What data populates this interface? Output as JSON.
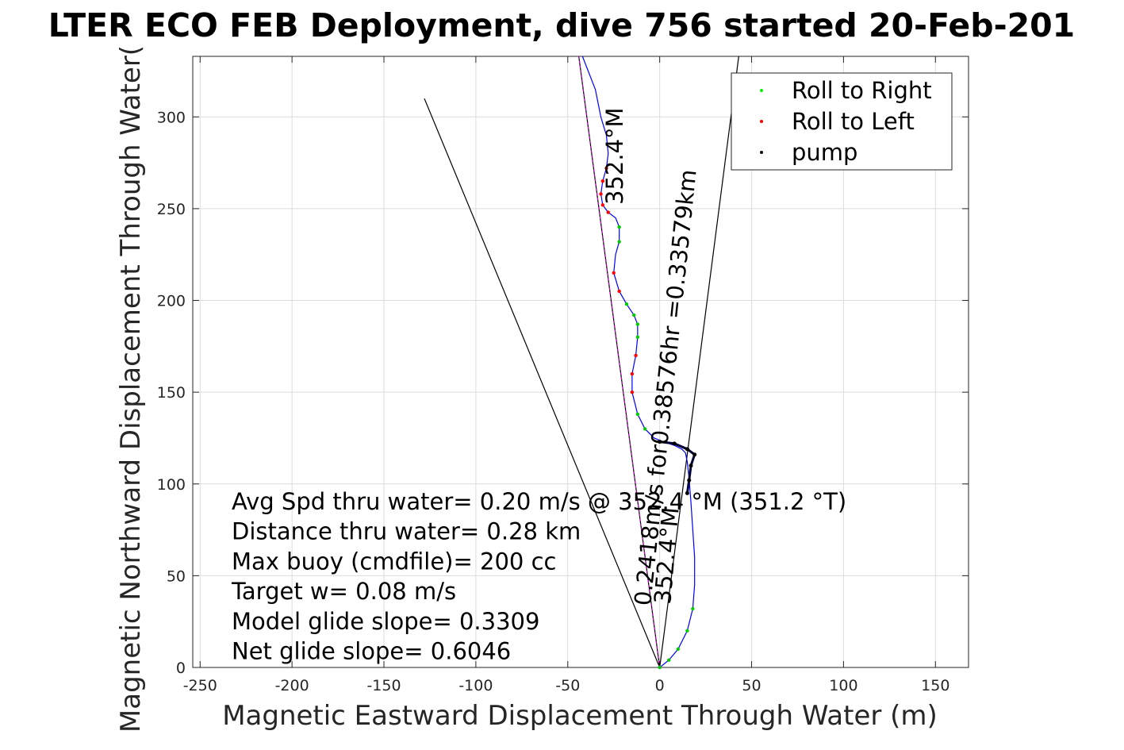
{
  "chart_data": {
    "type": "line",
    "title": "LTER ECO FEB Deployment, dive 756 started 20-Feb-201",
    "xlabel": "Magnetic Eastward Displacement Through Water (m)",
    "ylabel": "Magnetic Northward Displacement Through Water(",
    "xlim": [
      -254,
      168
    ],
    "ylim": [
      0,
      333
    ],
    "xticks": [
      -250,
      -200,
      -150,
      -100,
      -50,
      0,
      50,
      100,
      150
    ],
    "yticks": [
      0,
      50,
      100,
      150,
      200,
      250,
      300
    ],
    "grid": true,
    "legend_position": "top-right",
    "legend": [
      {
        "label": "Roll to Right",
        "color": "#00ee00"
      },
      {
        "label": "Roll to Left",
        "color": "#ff0000"
      },
      {
        "label": "pump",
        "color": "#000000"
      }
    ],
    "colors": {
      "track": "#0000ff",
      "roll_right": "#00cc00",
      "roll_left": "#ff0000",
      "pump": "#000000",
      "vectors": "#000000",
      "heading_line": "#cc00cc"
    },
    "annotations": [
      "Avg Spd thru water=  0.20 m/s @ 352.4 °M (351.2 °T)",
      "Distance thru water=  0.28 km",
      "Max buoy (cmdfile)= 200 cc",
      "Target w= 0.08 m/s",
      "Model glide slope= 0.3309",
      "Net glide slope= 0.6046"
    ],
    "rotated_labels": [
      "0.2418m/s for0.38576hr =0.33579km",
      "352.4°M",
      "352.4°M"
    ],
    "series": [
      {
        "name": "track",
        "x": [
          0,
          5,
          10,
          15,
          18,
          19,
          19,
          18,
          17,
          16,
          15,
          14,
          12,
          8,
          2,
          -3,
          -8,
          -12,
          -15,
          -15,
          -13,
          -12,
          -12,
          -14,
          -18,
          -22,
          -25,
          -24,
          -22,
          -22,
          -24,
          -28,
          -31,
          -32,
          -31,
          -29,
          -28,
          -29,
          -32,
          -35,
          -42
        ],
        "y": [
          0,
          4,
          10,
          20,
          32,
          45,
          60,
          75,
          90,
          103,
          112,
          117,
          119,
          121,
          123,
          125,
          130,
          138,
          150,
          160,
          170,
          180,
          187,
          192,
          198,
          205,
          215,
          225,
          232,
          240,
          245,
          248,
          252,
          258,
          265,
          272,
          280,
          290,
          300,
          315,
          333
        ]
      },
      {
        "name": "heading_line",
        "x": [
          0,
          -44
        ],
        "y": [
          0,
          333
        ]
      },
      {
        "name": "wind_vector_left",
        "x": [
          0,
          -128
        ],
        "y": [
          0,
          310
        ]
      },
      {
        "name": "wind_vector_right",
        "x": [
          0,
          43
        ],
        "y": [
          0,
          333
        ]
      },
      {
        "name": "pump_segment",
        "x": [
          0,
          8,
          15,
          19,
          17,
          16,
          15
        ],
        "y": [
          123,
          122,
          119,
          116,
          110,
          102,
          95
        ]
      }
    ]
  }
}
